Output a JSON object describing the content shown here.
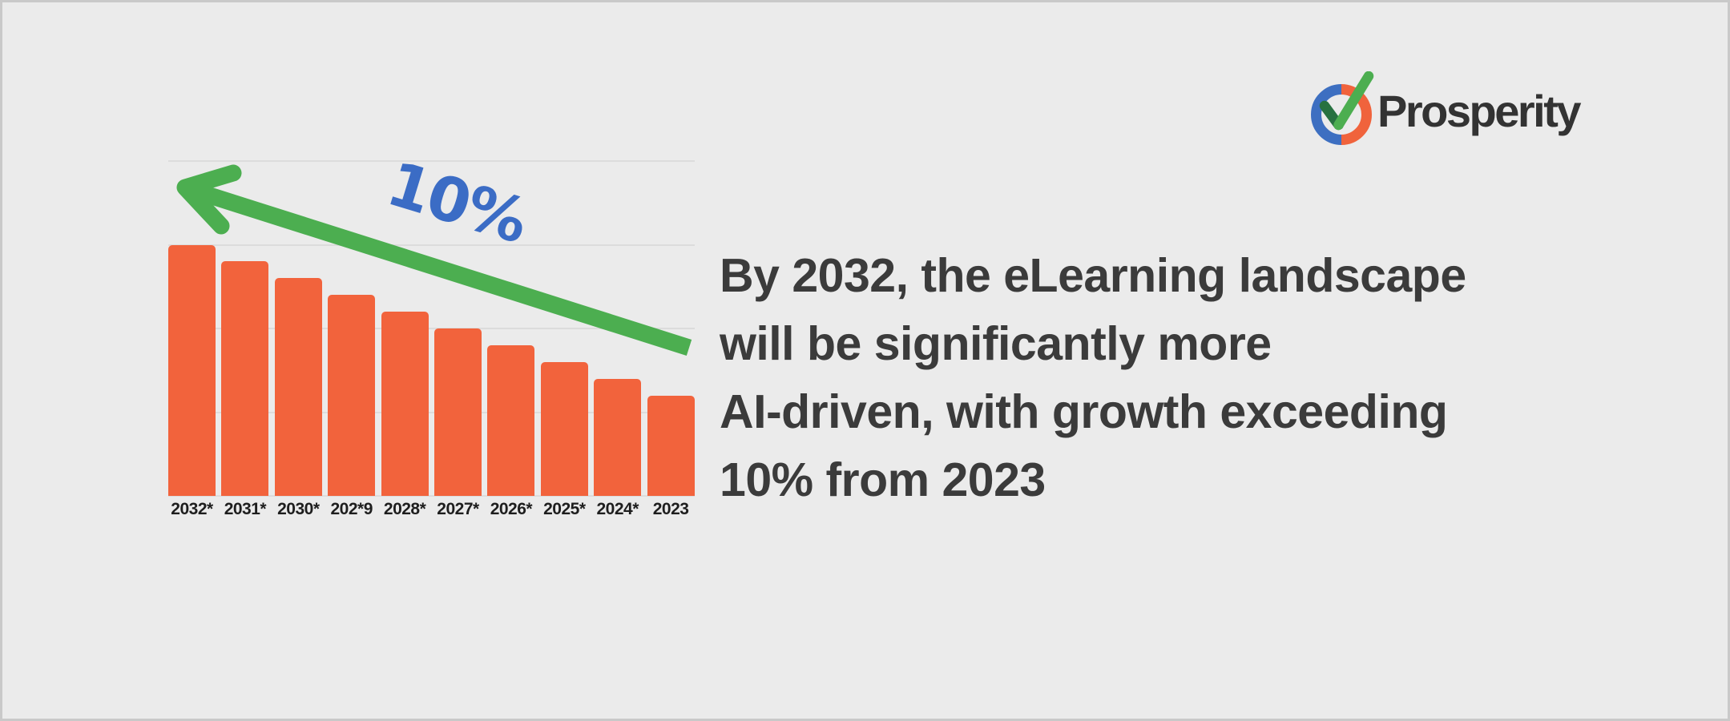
{
  "canvas": {
    "background": "#EBEBEB",
    "border_color": "#C9C9C9"
  },
  "brand": {
    "name": "Prosperity",
    "text_color": "#333333",
    "logo": {
      "icon": "check-circle-icon",
      "ring_left_color": "#3D6FC1",
      "ring_right_color": "#F0633C",
      "check_dark_color": "#277140",
      "check_bright_color": "#4CAE50"
    }
  },
  "headline": {
    "lines": [
      "By 2032, the eLearning landscape",
      "will be significantly more",
      "AI-driven, with growth exceeding",
      "10% from 2023"
    ],
    "color": "#3B3B3B"
  },
  "chart_data": {
    "type": "bar",
    "categories": [
      "2032*",
      "2031*",
      "2030*",
      "202*9",
      "2028*",
      "2027*",
      "2026*",
      "2025*",
      "2024*",
      "2023"
    ],
    "values": [
      75,
      70,
      65,
      60,
      55,
      50,
      45,
      40,
      35,
      30
    ],
    "title": "",
    "xlabel": "",
    "ylabel": "",
    "ylim": [
      0,
      100
    ],
    "gridline_values": [
      0,
      25,
      50,
      75,
      100
    ],
    "grid": true,
    "legend_position": "none",
    "bar_color": "#F2633C",
    "gridline_color": "#DCDCDC",
    "tick_label_color": "#1E1E1E",
    "annotation": {
      "text": "10%",
      "color": "#3B6CC5",
      "rotation_deg": 17
    },
    "arrow": {
      "color": "#4CAE50",
      "direction": "up-left"
    }
  }
}
